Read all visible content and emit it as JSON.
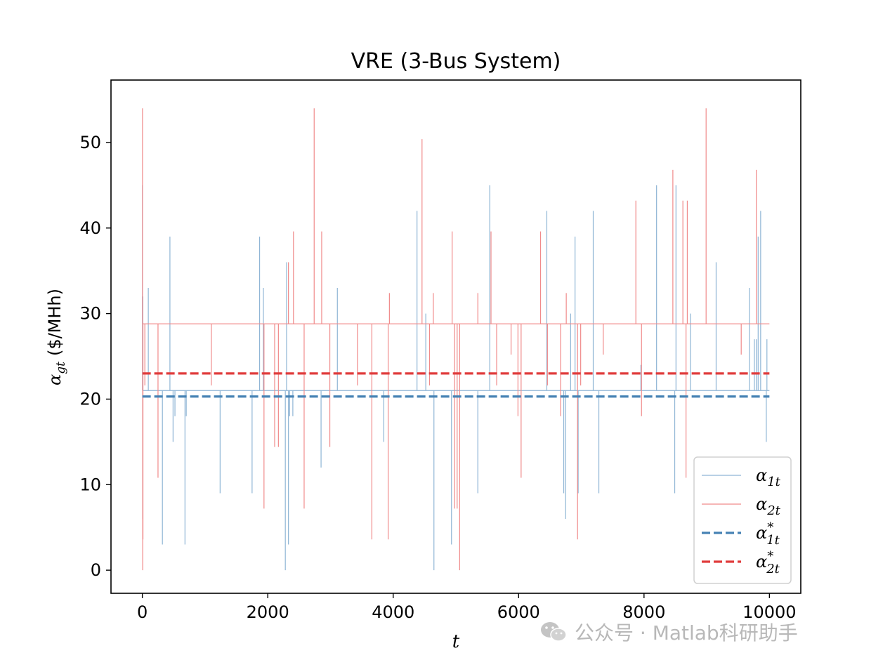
{
  "chart_data": {
    "type": "line",
    "title": "VRE (3-Bus System)",
    "xlabel": "t",
    "ylabel_units": "($/MHh)",
    "ylabel_symbol": "α",
    "ylabel_sub": "gt",
    "xlim": [
      -500,
      10500
    ],
    "ylim": [
      -2.7,
      57.3
    ],
    "xticks": [
      0,
      2000,
      4000,
      6000,
      8000,
      10000
    ],
    "xtick_labels": [
      "0",
      "2000",
      "4000",
      "6000",
      "8000",
      "10000"
    ],
    "yticks": [
      0,
      10,
      20,
      30,
      40,
      50
    ],
    "ytick_labels": [
      "0",
      "10",
      "20",
      "30",
      "40",
      "50"
    ],
    "grid": false,
    "legend_position": "lower-right",
    "colors": {
      "alpha1": "#8fb5d5",
      "alpha2": "#f08a8a",
      "alpha1_star": "#4682b4",
      "alpha2_star": "#e03c3c"
    },
    "series": [
      {
        "legend_symbol": "α",
        "legend_sub": "1t",
        "legend_sup": "",
        "style": "solid",
        "baseline": 21,
        "x_range": [
          0,
          10000
        ],
        "spikes": [
          [
            2,
            45
          ],
          [
            5,
            6
          ],
          [
            8,
            32
          ],
          [
            60,
            21
          ],
          [
            95,
            33
          ],
          [
            230,
            21
          ],
          [
            320,
            3
          ],
          [
            440,
            39
          ],
          [
            490,
            15
          ],
          [
            520,
            18
          ],
          [
            680,
            3
          ],
          [
            700,
            18
          ],
          [
            1240,
            9
          ],
          [
            1750,
            9
          ],
          [
            1870,
            39
          ],
          [
            1930,
            33
          ],
          [
            2280,
            0
          ],
          [
            2300,
            36
          ],
          [
            2330,
            3
          ],
          [
            2350,
            18
          ],
          [
            2400,
            18
          ],
          [
            2850,
            12
          ],
          [
            3110,
            33
          ],
          [
            3850,
            15
          ],
          [
            4380,
            42
          ],
          [
            4520,
            30
          ],
          [
            4650,
            0
          ],
          [
            4930,
            3
          ],
          [
            5350,
            9
          ],
          [
            5540,
            45
          ],
          [
            6450,
            42
          ],
          [
            6720,
            9
          ],
          [
            6750,
            6
          ],
          [
            6830,
            30
          ],
          [
            6900,
            39
          ],
          [
            6950,
            9
          ],
          [
            7190,
            42
          ],
          [
            7280,
            9
          ],
          [
            7950,
            24
          ],
          [
            8200,
            45
          ],
          [
            8490,
            9
          ],
          [
            8510,
            45
          ],
          [
            8740,
            30
          ],
          [
            9150,
            36
          ],
          [
            9680,
            33
          ],
          [
            9760,
            27
          ],
          [
            9790,
            27
          ],
          [
            9820,
            39
          ],
          [
            9860,
            42
          ],
          [
            9950,
            15
          ],
          [
            9960,
            27
          ]
        ]
      },
      {
        "legend_symbol": "α",
        "legend_sub": "2t",
        "legend_sup": "",
        "style": "solid",
        "baseline": 28.8,
        "x_range": [
          0,
          10000
        ],
        "spikes": [
          [
            3,
            54
          ],
          [
            6,
            0
          ],
          [
            10,
            3.6
          ],
          [
            40,
            21.6
          ],
          [
            250,
            10.8
          ],
          [
            1100,
            21.6
          ],
          [
            1940,
            7.2
          ],
          [
            2110,
            14.4
          ],
          [
            2170,
            14.4
          ],
          [
            2330,
            36
          ],
          [
            2410,
            39.6
          ],
          [
            2580,
            7.2
          ],
          [
            2740,
            54
          ],
          [
            2860,
            39.6
          ],
          [
            2990,
            14.4
          ],
          [
            3430,
            21.6
          ],
          [
            3660,
            3.6
          ],
          [
            3920,
            3.6
          ],
          [
            3940,
            32.4
          ],
          [
            4460,
            50.4
          ],
          [
            4580,
            21.6
          ],
          [
            4640,
            32.4
          ],
          [
            4940,
            39.6
          ],
          [
            4980,
            7.2
          ],
          [
            5020,
            7.2
          ],
          [
            5060,
            0
          ],
          [
            5350,
            32.4
          ],
          [
            5560,
            39.6
          ],
          [
            5650,
            21.6
          ],
          [
            5880,
            25.2
          ],
          [
            5990,
            18
          ],
          [
            6040,
            10.8
          ],
          [
            6350,
            39.6
          ],
          [
            6460,
            21.6
          ],
          [
            6670,
            18
          ],
          [
            6760,
            32.4
          ],
          [
            6940,
            3.6
          ],
          [
            6990,
            21.6
          ],
          [
            7350,
            25.2
          ],
          [
            7870,
            43.2
          ],
          [
            7960,
            18
          ],
          [
            8460,
            46.8
          ],
          [
            8620,
            43.2
          ],
          [
            8670,
            10.8
          ],
          [
            8690,
            43.2
          ],
          [
            8990,
            54
          ],
          [
            9550,
            25.2
          ],
          [
            9790,
            46.8
          ]
        ]
      },
      {
        "legend_symbol": "α",
        "legend_sub": "1t",
        "legend_sup": "*",
        "style": "dashed",
        "x": [
          0,
          10000
        ],
        "y": [
          20.3,
          20.3
        ]
      },
      {
        "legend_symbol": "α",
        "legend_sub": "2t",
        "legend_sup": "*",
        "style": "dashed",
        "x": [
          0,
          10000
        ],
        "y": [
          23,
          23
        ]
      }
    ]
  },
  "watermark": {
    "icon": "wechat-icon",
    "text": "公众号 · Matlab科研助手"
  }
}
